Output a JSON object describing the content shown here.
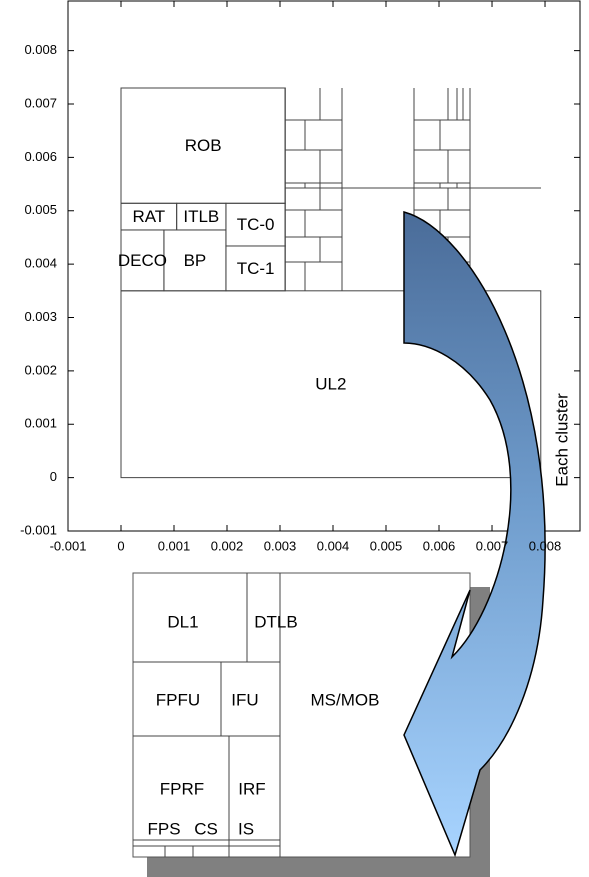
{
  "plot": {
    "xlim": [
      -0.001,
      0.00866
    ],
    "ylim": [
      -0.001,
      0.00893
    ],
    "xticks": [
      -0.001,
      0,
      0.001,
      0.002,
      0.003,
      0.004,
      0.005,
      0.006,
      0.007,
      0.008
    ],
    "yticks": [
      -0.001,
      0,
      0.001,
      0.002,
      0.003,
      0.004,
      0.005,
      0.006,
      0.007,
      0.008
    ],
    "blocks": [
      {
        "label": "UL2",
        "x0": 0,
        "y0": 0,
        "x1": 0.00792,
        "y1": 0.0035
      },
      {
        "label": "ROB",
        "x0": 0,
        "y0": 0.00514,
        "x1": 0.0031,
        "y1": 0.0073
      },
      {
        "label": "RAT",
        "x0": 0,
        "y0": 0.00464,
        "x1": 0.00105,
        "y1": 0.00514
      },
      {
        "label": "ITLB",
        "x0": 0.00105,
        "y0": 0.00464,
        "x1": 0.00198,
        "y1": 0.00514
      },
      {
        "label": "TC-0",
        "x0": 0.00198,
        "y0": 0.00434,
        "x1": 0.0031,
        "y1": 0.00514
      },
      {
        "label": "TC-1",
        "x0": 0.00198,
        "y0": 0.0035,
        "x1": 0.0031,
        "y1": 0.00434
      },
      {
        "label": "DECO",
        "x0": 0,
        "y0": 0.0035,
        "x1": 0.00081,
        "y1": 0.00464
      },
      {
        "label": "BP",
        "x0": 0.00081,
        "y0": 0.0035,
        "x1": 0.00198,
        "y1": 0.00464
      }
    ]
  },
  "annotation": "Each cluster",
  "cluster": {
    "blocks": [
      {
        "label": "DL1"
      },
      {
        "label": "DTLB"
      },
      {
        "label": "FPFU"
      },
      {
        "label": "IFU"
      },
      {
        "label": "MS/MOB"
      },
      {
        "label": "FPRF"
      },
      {
        "label": "IRF"
      },
      {
        "label": "FPS"
      },
      {
        "label": "CS"
      },
      {
        "label": "IS"
      }
    ]
  }
}
